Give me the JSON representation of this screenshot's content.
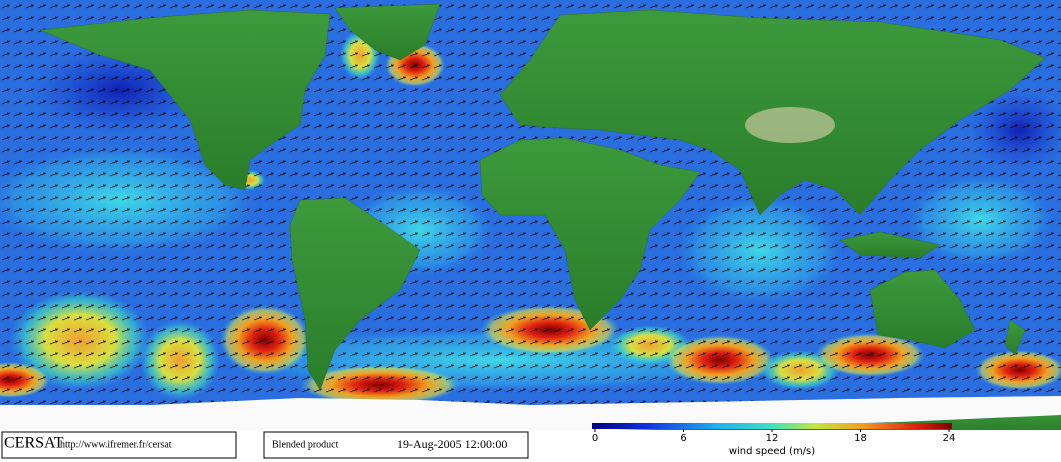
{
  "footer": {
    "logo": "CERSAT",
    "url": "http://www.ifremer.fr/cersat",
    "product": "Blended product",
    "date": "19-Aug-2005 12:00:00"
  },
  "colorbar": {
    "label": "wind speed (m/s)",
    "lim": [
      0,
      24
    ],
    "ticks": [
      0,
      6,
      12,
      18,
      24
    ]
  }
}
